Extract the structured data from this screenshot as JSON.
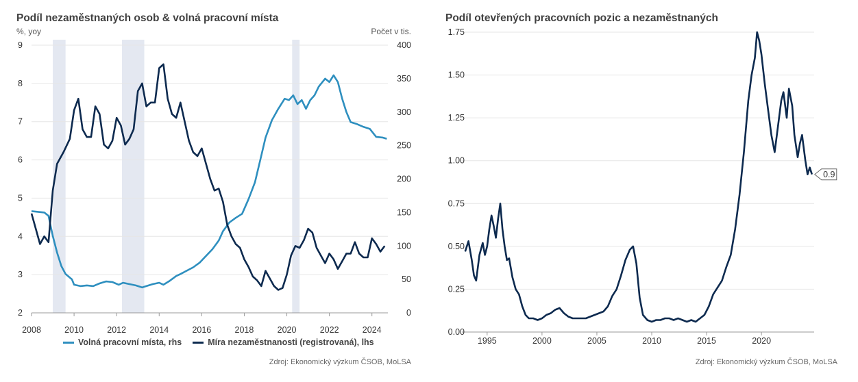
{
  "left": {
    "title": "Podíl nezaměstnaných osob & volná pracovní místa",
    "ylabel_left": "%, yoy",
    "ylabel_right": "Počet v tis.",
    "source": "Zdroj: Ekonomický výzkum ČSOB, MoLSA",
    "legend": [
      {
        "label": "Volná pracovní místa, rhs",
        "color": "#2E8FBF"
      },
      {
        "label": "Míra nezaměstnanosti (registrovaná), lhs",
        "color": "#0D2A4F"
      }
    ]
  },
  "right": {
    "title": "Podíl otevřených pracovních pozic a nezaměstnaných",
    "source": "Zdroj: Ekonomický výzkum ČSOB, MoLSA",
    "end_label": "0.9"
  },
  "chart_data": [
    {
      "type": "line",
      "title": "Podíl nezaměstnaných osob & volná pracovní místa",
      "xlim": [
        2008,
        2024.75
      ],
      "ylim_left": [
        2,
        9
      ],
      "ylim_right": [
        0,
        400
      ],
      "x_ticks": [
        2008,
        2010,
        2012,
        2014,
        2016,
        2018,
        2020,
        2022,
        2024
      ],
      "y_ticks_left": [
        2,
        3,
        4,
        5,
        6,
        7,
        8,
        9
      ],
      "y_ticks_right": [
        0,
        50,
        100,
        150,
        200,
        250,
        300,
        350,
        400
      ],
      "recessions": [
        [
          2009.0,
          2009.6
        ],
        [
          2012.25,
          2013.3
        ],
        [
          2020.25,
          2020.6
        ]
      ],
      "series": [
        {
          "name": "Volná pracovní místa, rhs",
          "axis": "right",
          "color": "#2E8FBF",
          "points": [
            [
              2008.0,
              152
            ],
            [
              2008.3,
              151
            ],
            [
              2008.6,
              150
            ],
            [
              2008.8,
              145
            ],
            [
              2009.0,
              115
            ],
            [
              2009.2,
              90
            ],
            [
              2009.4,
              70
            ],
            [
              2009.6,
              58
            ],
            [
              2009.9,
              50
            ],
            [
              2010.0,
              42
            ],
            [
              2010.3,
              40
            ],
            [
              2010.6,
              41
            ],
            [
              2010.9,
              40
            ],
            [
              2011.2,
              44
            ],
            [
              2011.5,
              47
            ],
            [
              2011.8,
              46
            ],
            [
              2012.1,
              42
            ],
            [
              2012.3,
              45
            ],
            [
              2012.6,
              43
            ],
            [
              2012.9,
              41
            ],
            [
              2013.2,
              38
            ],
            [
              2013.4,
              40
            ],
            [
              2013.7,
              43
            ],
            [
              2014.0,
              45
            ],
            [
              2014.2,
              42
            ],
            [
              2014.5,
              48
            ],
            [
              2014.8,
              55
            ],
            [
              2015.0,
              58
            ],
            [
              2015.3,
              63
            ],
            [
              2015.6,
              68
            ],
            [
              2015.9,
              75
            ],
            [
              2016.2,
              85
            ],
            [
              2016.5,
              95
            ],
            [
              2016.8,
              108
            ],
            [
              2017.0,
              122
            ],
            [
              2017.3,
              135
            ],
            [
              2017.6,
              142
            ],
            [
              2017.9,
              148
            ],
            [
              2018.2,
              170
            ],
            [
              2018.5,
              195
            ],
            [
              2018.8,
              235
            ],
            [
              2019.0,
              262
            ],
            [
              2019.3,
              288
            ],
            [
              2019.6,
              305
            ],
            [
              2019.9,
              320
            ],
            [
              2020.1,
              318
            ],
            [
              2020.3,
              325
            ],
            [
              2020.5,
              312
            ],
            [
              2020.7,
              318
            ],
            [
              2020.9,
              305
            ],
            [
              2021.1,
              318
            ],
            [
              2021.3,
              325
            ],
            [
              2021.5,
              338
            ],
            [
              2021.8,
              350
            ],
            [
              2022.0,
              345
            ],
            [
              2022.2,
              355
            ],
            [
              2022.4,
              345
            ],
            [
              2022.6,
              320
            ],
            [
              2022.8,
              300
            ],
            [
              2023.0,
              285
            ],
            [
              2023.3,
              282
            ],
            [
              2023.6,
              278
            ],
            [
              2023.9,
              275
            ],
            [
              2024.2,
              263
            ],
            [
              2024.5,
              262
            ],
            [
              2024.7,
              260
            ]
          ]
        },
        {
          "name": "Míra nezaměstnanosti (registrovaná), lhs",
          "axis": "left",
          "color": "#0D2A4F",
          "points": [
            [
              2008.0,
              4.6
            ],
            [
              2008.2,
              4.2
            ],
            [
              2008.4,
              3.8
            ],
            [
              2008.6,
              4.0
            ],
            [
              2008.8,
              3.85
            ],
            [
              2009.0,
              5.2
            ],
            [
              2009.2,
              5.9
            ],
            [
              2009.5,
              6.2
            ],
            [
              2009.8,
              6.55
            ],
            [
              2010.0,
              7.3
            ],
            [
              2010.2,
              7.6
            ],
            [
              2010.4,
              6.8
            ],
            [
              2010.6,
              6.6
            ],
            [
              2010.8,
              6.6
            ],
            [
              2011.0,
              7.4
            ],
            [
              2011.2,
              7.2
            ],
            [
              2011.4,
              6.4
            ],
            [
              2011.6,
              6.3
            ],
            [
              2011.8,
              6.5
            ],
            [
              2012.0,
              7.1
            ],
            [
              2012.2,
              6.9
            ],
            [
              2012.4,
              6.4
            ],
            [
              2012.6,
              6.55
            ],
            [
              2012.8,
              6.8
            ],
            [
              2013.0,
              7.8
            ],
            [
              2013.2,
              8.0
            ],
            [
              2013.4,
              7.4
            ],
            [
              2013.6,
              7.5
            ],
            [
              2013.8,
              7.5
            ],
            [
              2014.0,
              8.4
            ],
            [
              2014.2,
              8.5
            ],
            [
              2014.4,
              7.6
            ],
            [
              2014.6,
              7.2
            ],
            [
              2014.8,
              7.1
            ],
            [
              2015.0,
              7.5
            ],
            [
              2015.2,
              7.0
            ],
            [
              2015.4,
              6.5
            ],
            [
              2015.6,
              6.2
            ],
            [
              2015.8,
              6.1
            ],
            [
              2016.0,
              6.3
            ],
            [
              2016.2,
              5.9
            ],
            [
              2016.4,
              5.5
            ],
            [
              2016.6,
              5.2
            ],
            [
              2016.8,
              5.25
            ],
            [
              2017.0,
              4.9
            ],
            [
              2017.2,
              4.3
            ],
            [
              2017.4,
              4.0
            ],
            [
              2017.6,
              3.8
            ],
            [
              2017.8,
              3.7
            ],
            [
              2018.0,
              3.4
            ],
            [
              2018.2,
              3.2
            ],
            [
              2018.4,
              2.95
            ],
            [
              2018.6,
              2.85
            ],
            [
              2018.8,
              2.7
            ],
            [
              2019.0,
              3.1
            ],
            [
              2019.2,
              2.9
            ],
            [
              2019.4,
              2.7
            ],
            [
              2019.6,
              2.6
            ],
            [
              2019.8,
              2.65
            ],
            [
              2020.0,
              3.0
            ],
            [
              2020.2,
              3.5
            ],
            [
              2020.4,
              3.75
            ],
            [
              2020.6,
              3.7
            ],
            [
              2020.8,
              3.9
            ],
            [
              2021.0,
              4.2
            ],
            [
              2021.2,
              4.1
            ],
            [
              2021.4,
              3.7
            ],
            [
              2021.6,
              3.5
            ],
            [
              2021.8,
              3.3
            ],
            [
              2022.0,
              3.55
            ],
            [
              2022.2,
              3.4
            ],
            [
              2022.4,
              3.15
            ],
            [
              2022.6,
              3.35
            ],
            [
              2022.8,
              3.55
            ],
            [
              2023.0,
              3.55
            ],
            [
              2023.2,
              3.85
            ],
            [
              2023.4,
              3.55
            ],
            [
              2023.6,
              3.45
            ],
            [
              2023.8,
              3.45
            ],
            [
              2024.0,
              3.95
            ],
            [
              2024.2,
              3.8
            ],
            [
              2024.4,
              3.6
            ],
            [
              2024.6,
              3.75
            ]
          ]
        }
      ]
    },
    {
      "type": "line",
      "title": "Podíl otevřených pracovních pozic a nezaměstnaných",
      "xlim": [
        1992.7,
        2024.8
      ],
      "ylim": [
        0,
        1.75
      ],
      "x_ticks": [
        1995,
        2000,
        2005,
        2010,
        2015,
        2020
      ],
      "y_ticks": [
        0.0,
        0.25,
        0.5,
        0.75,
        1.0,
        1.25,
        1.5,
        1.75
      ],
      "series": [
        {
          "color": "#0D2A4F",
          "points": [
            [
              1993.0,
              0.47
            ],
            [
              1993.3,
              0.53
            ],
            [
              1993.6,
              0.42
            ],
            [
              1993.8,
              0.33
            ],
            [
              1994.0,
              0.3
            ],
            [
              1994.3,
              0.45
            ],
            [
              1994.6,
              0.52
            ],
            [
              1994.8,
              0.45
            ],
            [
              1995.0,
              0.5
            ],
            [
              1995.2,
              0.6
            ],
            [
              1995.4,
              0.68
            ],
            [
              1995.6,
              0.62
            ],
            [
              1995.8,
              0.55
            ],
            [
              1996.0,
              0.66
            ],
            [
              1996.2,
              0.75
            ],
            [
              1996.4,
              0.6
            ],
            [
              1996.6,
              0.5
            ],
            [
              1996.8,
              0.42
            ],
            [
              1997.0,
              0.43
            ],
            [
              1997.3,
              0.32
            ],
            [
              1997.6,
              0.25
            ],
            [
              1997.9,
              0.22
            ],
            [
              1998.2,
              0.15
            ],
            [
              1998.5,
              0.1
            ],
            [
              1998.8,
              0.08
            ],
            [
              1999.2,
              0.08
            ],
            [
              1999.6,
              0.07
            ],
            [
              2000.0,
              0.08
            ],
            [
              2000.4,
              0.1
            ],
            [
              2000.8,
              0.11
            ],
            [
              2001.2,
              0.13
            ],
            [
              2001.6,
              0.14
            ],
            [
              2002.0,
              0.11
            ],
            [
              2002.4,
              0.09
            ],
            [
              2002.8,
              0.08
            ],
            [
              2003.2,
              0.08
            ],
            [
              2003.6,
              0.08
            ],
            [
              2004.0,
              0.08
            ],
            [
              2004.4,
              0.09
            ],
            [
              2004.8,
              0.1
            ],
            [
              2005.2,
              0.11
            ],
            [
              2005.6,
              0.12
            ],
            [
              2006.0,
              0.15
            ],
            [
              2006.4,
              0.21
            ],
            [
              2006.8,
              0.25
            ],
            [
              2007.2,
              0.33
            ],
            [
              2007.6,
              0.42
            ],
            [
              2008.0,
              0.48
            ],
            [
              2008.3,
              0.5
            ],
            [
              2008.6,
              0.4
            ],
            [
              2008.9,
              0.2
            ],
            [
              2009.2,
              0.1
            ],
            [
              2009.6,
              0.07
            ],
            [
              2010.0,
              0.06
            ],
            [
              2010.4,
              0.07
            ],
            [
              2010.8,
              0.07
            ],
            [
              2011.2,
              0.08
            ],
            [
              2011.6,
              0.08
            ],
            [
              2012.0,
              0.07
            ],
            [
              2012.4,
              0.08
            ],
            [
              2012.8,
              0.07
            ],
            [
              2013.2,
              0.06
            ],
            [
              2013.6,
              0.07
            ],
            [
              2014.0,
              0.06
            ],
            [
              2014.4,
              0.08
            ],
            [
              2014.8,
              0.1
            ],
            [
              2015.2,
              0.15
            ],
            [
              2015.6,
              0.22
            ],
            [
              2016.0,
              0.26
            ],
            [
              2016.4,
              0.3
            ],
            [
              2016.8,
              0.38
            ],
            [
              2017.2,
              0.45
            ],
            [
              2017.6,
              0.6
            ],
            [
              2018.0,
              0.8
            ],
            [
              2018.4,
              1.05
            ],
            [
              2018.8,
              1.35
            ],
            [
              2019.1,
              1.5
            ],
            [
              2019.4,
              1.6
            ],
            [
              2019.6,
              1.75
            ],
            [
              2019.8,
              1.7
            ],
            [
              2020.0,
              1.62
            ],
            [
              2020.3,
              1.45
            ],
            [
              2020.6,
              1.3
            ],
            [
              2020.9,
              1.15
            ],
            [
              2021.2,
              1.05
            ],
            [
              2021.5,
              1.2
            ],
            [
              2021.8,
              1.35
            ],
            [
              2022.0,
              1.4
            ],
            [
              2022.3,
              1.25
            ],
            [
              2022.5,
              1.42
            ],
            [
              2022.8,
              1.32
            ],
            [
              2023.0,
              1.15
            ],
            [
              2023.3,
              1.02
            ],
            [
              2023.5,
              1.1
            ],
            [
              2023.7,
              1.15
            ],
            [
              2024.0,
              1.0
            ],
            [
              2024.2,
              0.92
            ],
            [
              2024.4,
              0.96
            ],
            [
              2024.6,
              0.92
            ]
          ]
        }
      ]
    }
  ]
}
